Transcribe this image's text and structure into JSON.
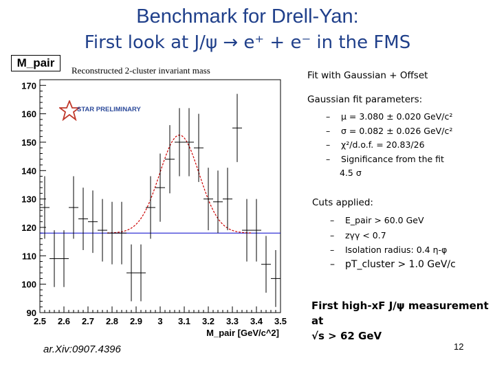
{
  "slide": {
    "title": "Benchmark for Drell-Yan:",
    "subtitle": "First look at J/ψ → e⁺ + e⁻ in the FMS",
    "plot_box_label": "M_pair",
    "left_caption": "Reconstructed 2-cluster invariant mass",
    "fit_caption": "Fit with Gaussian + Offset",
    "fit_params_header": "Gaussian fit parameters:",
    "fit_params": [
      "μ = 3.080 ± 0.020 GeV/c²",
      "σ = 0.082 ± 0.026 GeV/c²",
      "χ²/d.o.f. = 20.83/26",
      "Significance from the fit"
    ],
    "significance_value": "4.5 σ",
    "cuts_header": "Cuts applied:",
    "cuts": [
      "E_pair > 60.0 GeV",
      "zγγ < 0.7",
      "Isolation radius: 0.4 η-φ",
      "pT_cluster > 1.0 GeV/c"
    ],
    "highlight_line1": "First high-xF J/ψ measurement",
    "highlight_line2": "at",
    "highlight_line3": "√s > 62 GeV",
    "arxiv": "ar.Xiv:0907.4396",
    "page_number": "12",
    "logo_text": "STAR PRELIMINARY"
  },
  "colors": {
    "title": "#1f3f8a",
    "fit_curve": "#cc0000",
    "offset_line": "#0000cc",
    "logo": "#2c4a9a"
  },
  "chart_data": {
    "type": "scatter",
    "title": "",
    "xlabel": "M_pair [GeV/c^2]",
    "ylabel": "",
    "xlim": [
      2.5,
      3.5
    ],
    "ylim": [
      90,
      172
    ],
    "x_ticks": [
      2.5,
      2.6,
      2.7,
      2.8,
      2.9,
      3.0,
      3.1,
      3.2,
      3.3,
      3.4,
      3.5
    ],
    "x_tick_labels": [
      "2.5",
      "2.6",
      "2.7",
      "2.8",
      "2.9",
      "3",
      "3.1",
      "3.2",
      "3.3",
      "3.4",
      "3.5"
    ],
    "y_ticks": [
      90,
      100,
      110,
      120,
      130,
      140,
      150,
      160,
      170
    ],
    "y_tick_labels": [
      "90",
      "100",
      "110",
      "120",
      "130",
      "140",
      "150",
      "160",
      "170"
    ],
    "bin_width": 0.04,
    "x": [
      2.52,
      2.56,
      2.6,
      2.64,
      2.68,
      2.72,
      2.76,
      2.8,
      2.84,
      2.88,
      2.92,
      2.96,
      3.0,
      3.04,
      3.08,
      3.12,
      3.16,
      3.2,
      3.24,
      3.28,
      3.32,
      3.36,
      3.4,
      3.44,
      3.48
    ],
    "y": [
      127,
      109,
      109,
      127,
      123,
      122,
      119,
      118,
      118,
      104,
      104,
      127,
      134,
      144,
      150,
      150,
      148,
      130,
      129,
      130,
      155,
      119,
      119,
      107,
      102
    ],
    "yerr": [
      11,
      10,
      10,
      11,
      11,
      11,
      11,
      11,
      11,
      10,
      10,
      11,
      12,
      12,
      12,
      12,
      12,
      11,
      11,
      11,
      12,
      11,
      11,
      10,
      10
    ],
    "fit": {
      "name": "Gaussian + Offset",
      "mean": 3.08,
      "sigma": 0.082,
      "amplitude": 34.5,
      "offset": 118
    }
  }
}
